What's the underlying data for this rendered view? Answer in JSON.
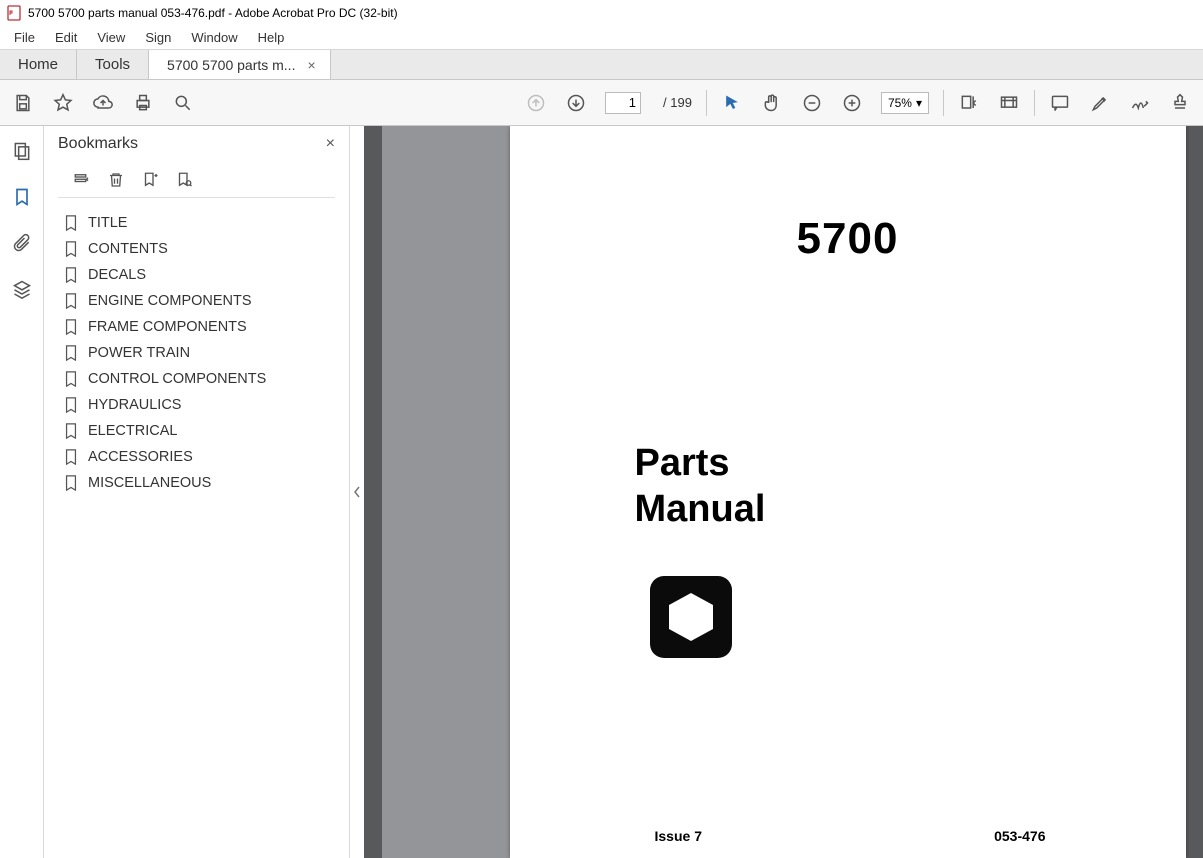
{
  "titlebar": {
    "text": "5700 5700 parts manual 053-476.pdf - Adobe Acrobat Pro DC (32-bit)"
  },
  "menubar": {
    "items": [
      "File",
      "Edit",
      "View",
      "Sign",
      "Window",
      "Help"
    ]
  },
  "tabs": {
    "home": "Home",
    "tools": "Tools",
    "doc": "5700 5700 parts m..."
  },
  "toolbar": {
    "page_current": "1",
    "page_total": "/ 199",
    "zoom": "75%"
  },
  "panel": {
    "title": "Bookmarks"
  },
  "bookmarks": [
    "TITLE",
    "CONTENTS",
    "DECALS",
    "ENGINE COMPONENTS",
    "FRAME COMPONENTS",
    "POWER TRAIN",
    "CONTROL COMPONENTS",
    "HYDRAULICS",
    "ELECTRICAL",
    "ACCESSORIES",
    "MISCELLANEOUS"
  ],
  "document": {
    "number": "5700",
    "subtitle_l1": "Parts",
    "subtitle_l2": "Manual",
    "issue": "Issue 7",
    "code": "053-476"
  }
}
